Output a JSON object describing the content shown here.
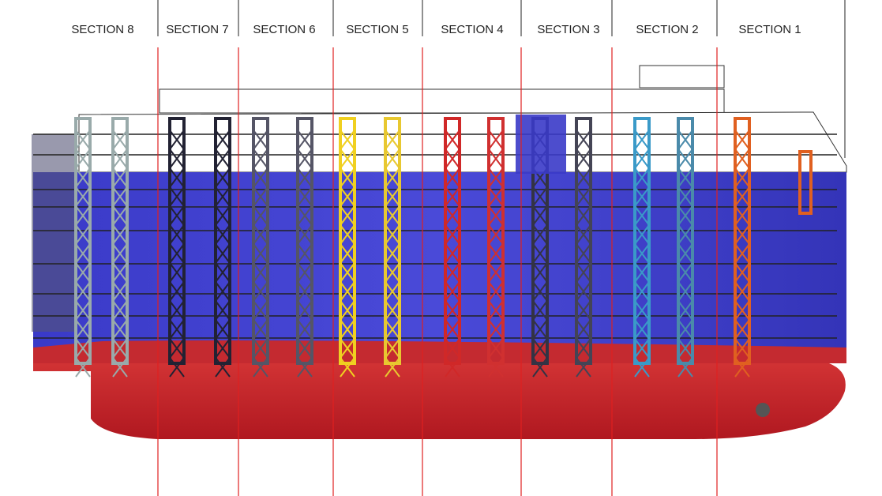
{
  "sections": [
    "SECTION 8",
    "SECTION 7",
    "SECTION 6",
    "SECTION 5",
    "SECTION 4",
    "SECTION 3",
    "SECTION 2",
    "SECTION 1"
  ]
}
